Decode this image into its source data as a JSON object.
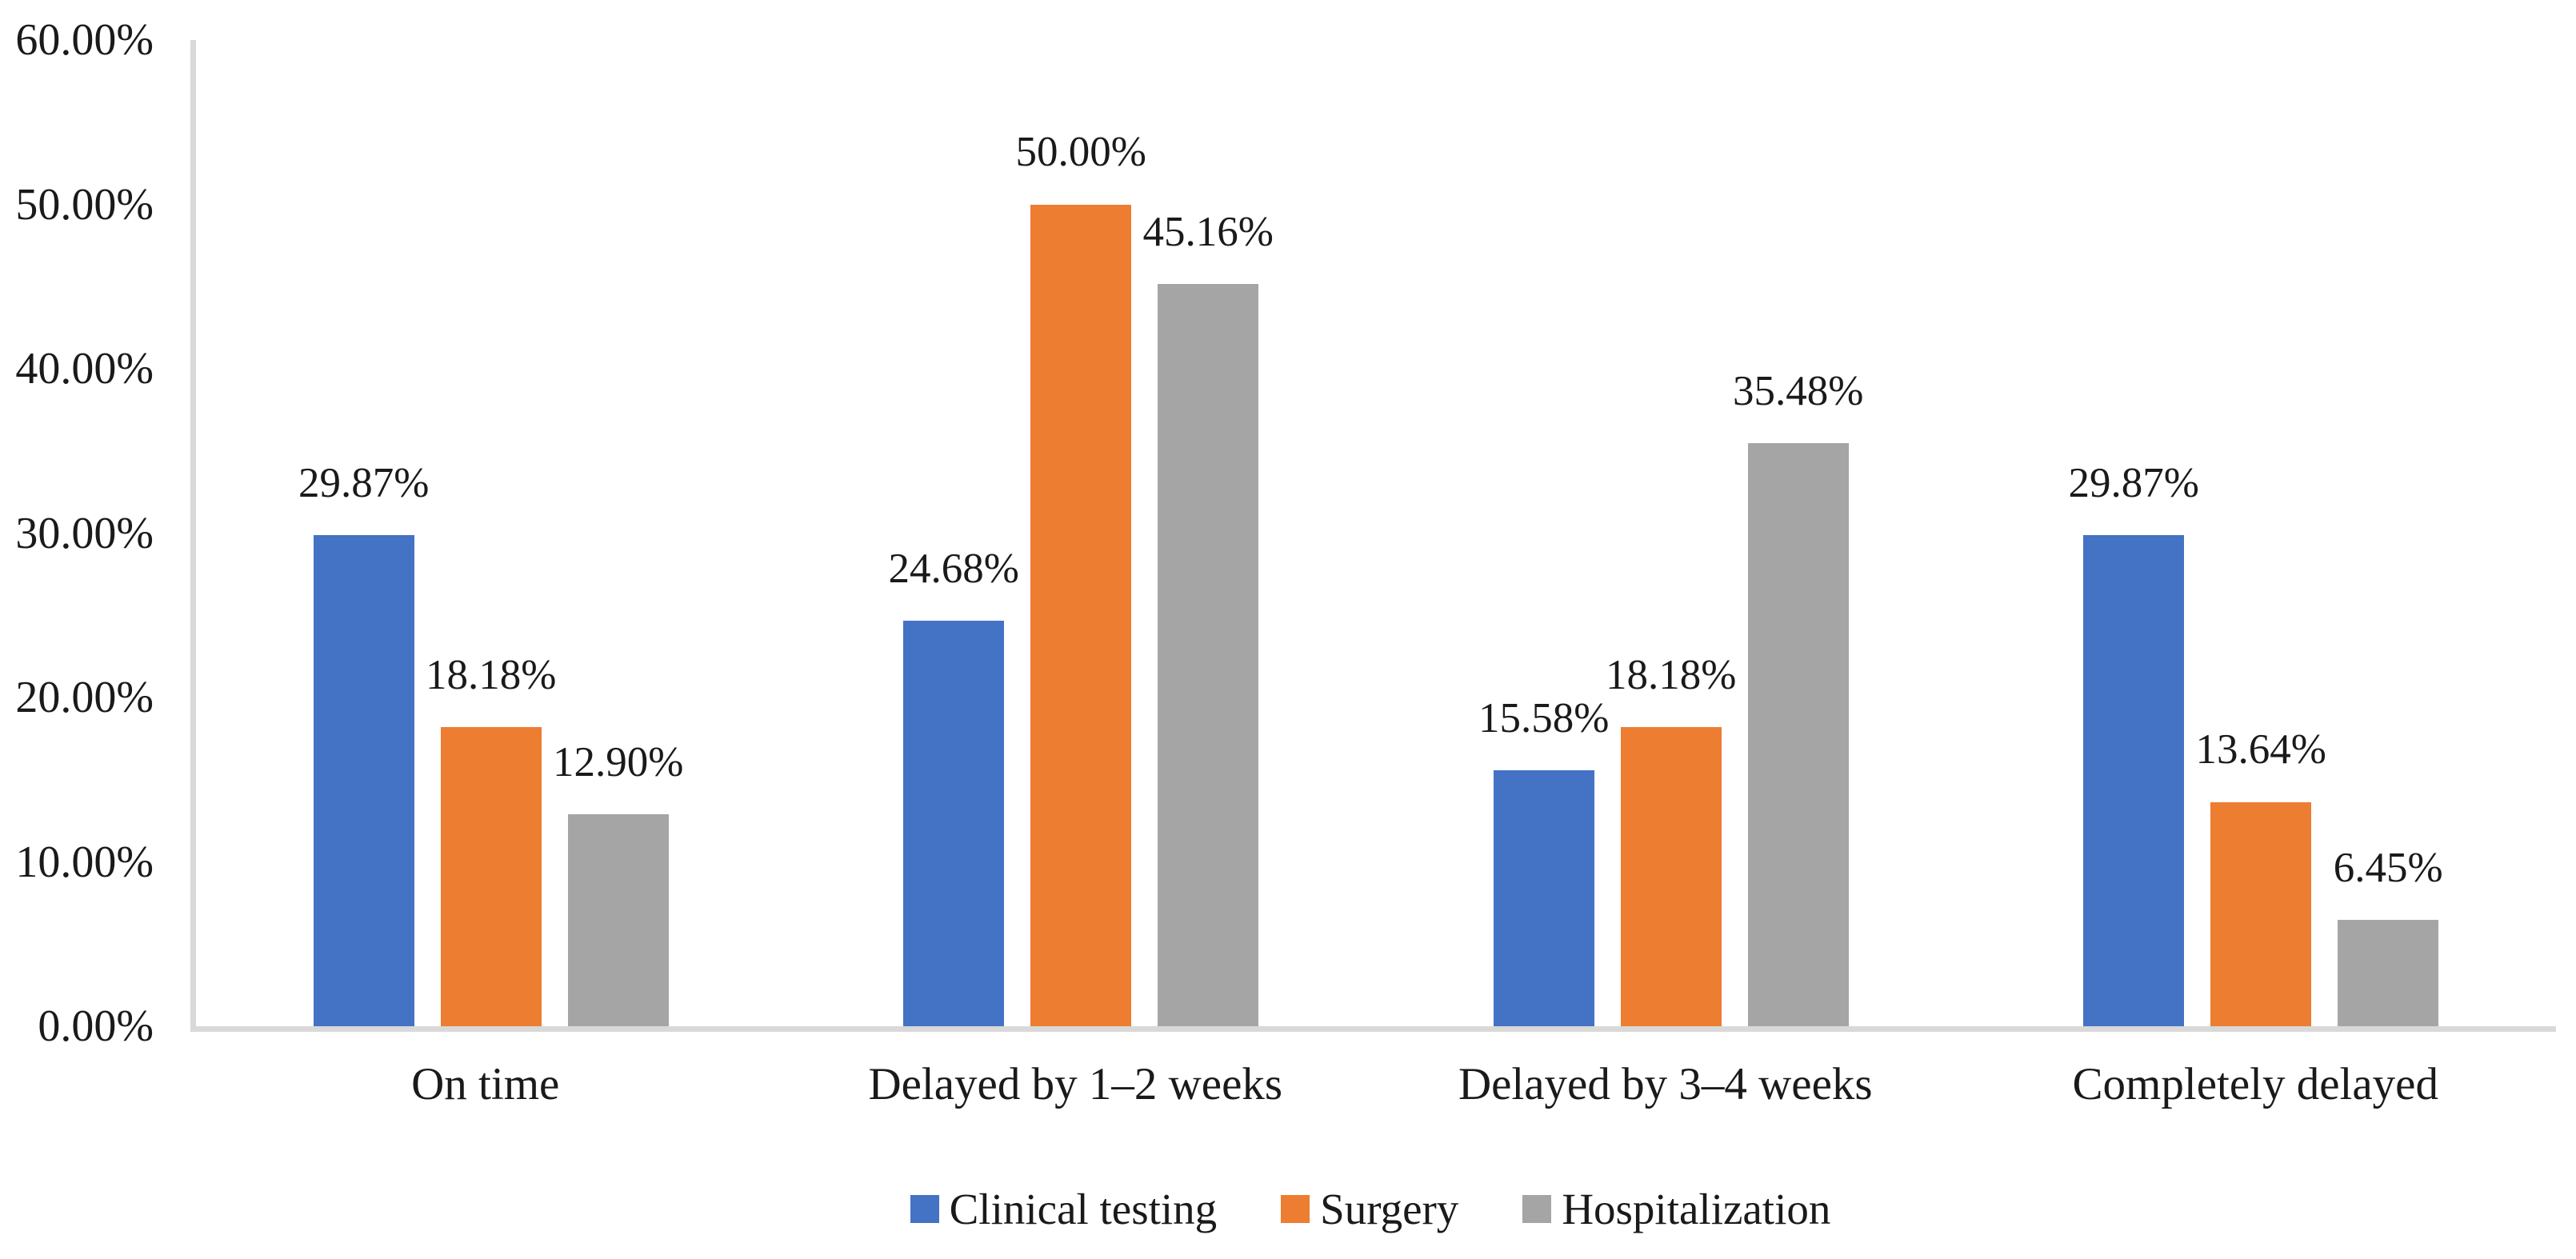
{
  "chart_data": {
    "type": "bar",
    "title": "",
    "xlabel": "",
    "ylabel": "",
    "categories": [
      "On time",
      "Delayed by 1–2 weeks",
      "Delayed by 3–4 weeks",
      "Completely delayed"
    ],
    "series": [
      {
        "name": "Clinical testing",
        "color": "#4472C4",
        "values": [
          29.87,
          24.68,
          15.58,
          29.87
        ],
        "labels": [
          "29.87%",
          "24.68%",
          "15.58%",
          "29.87%"
        ]
      },
      {
        "name": "Surgery",
        "color": "#ED7D31",
        "values": [
          18.18,
          50.0,
          18.18,
          13.64
        ],
        "labels": [
          "18.18%",
          "50.00%",
          "18.18%",
          "13.64%"
        ]
      },
      {
        "name": "Hospitalization",
        "color": "#A5A5A5",
        "values": [
          12.9,
          45.16,
          35.48,
          6.45
        ],
        "labels": [
          "12.90%",
          "45.16%",
          "35.48%",
          "6.45%"
        ]
      }
    ],
    "ylim": [
      0,
      60
    ],
    "y_tick_step": 10,
    "y_ticks": [
      "0.00%",
      "10.00%",
      "20.00%",
      "30.00%",
      "40.00%",
      "50.00%",
      "60.00%"
    ],
    "grid": false,
    "legend_position": "bottom-center",
    "axis_line_color": "#D9D9D9",
    "text_color": "#1a1a1a",
    "data_labels": "outside-end"
  }
}
